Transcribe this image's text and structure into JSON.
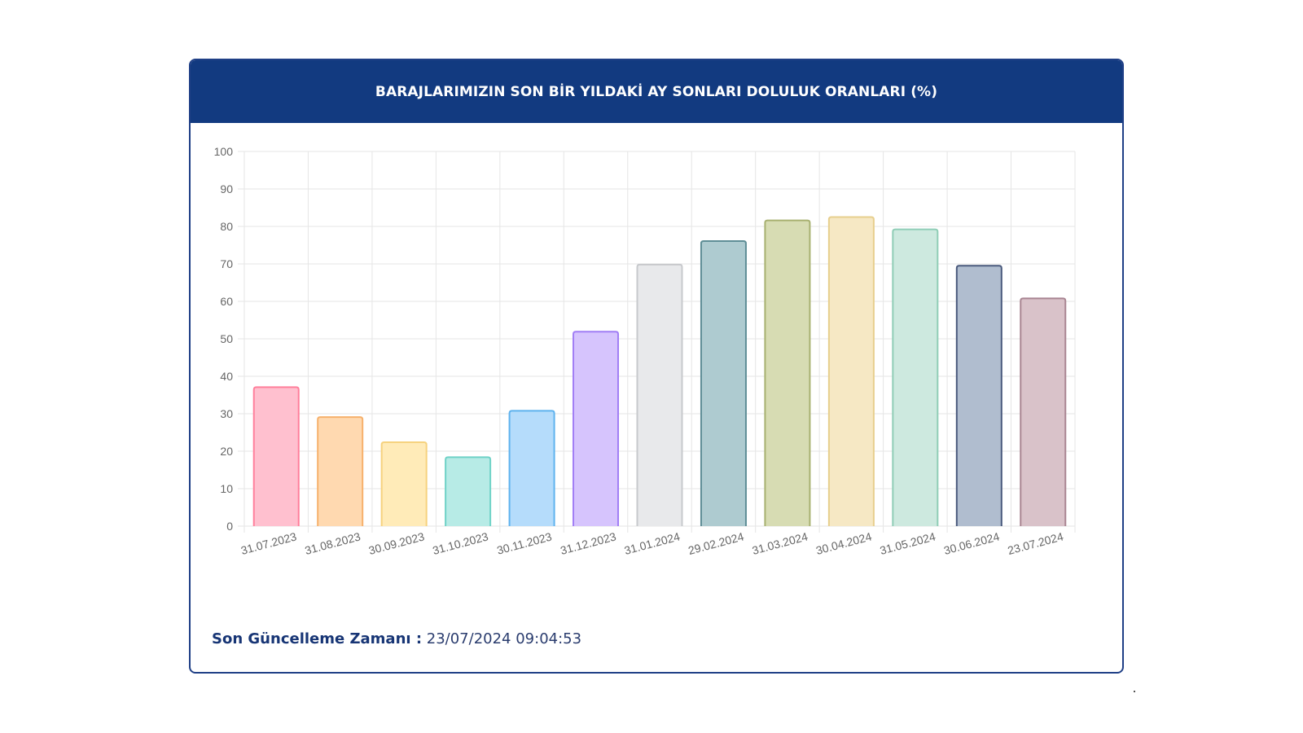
{
  "header": {
    "title": "BARAJLARIMIZIN SON BİR YILDAKİ AY SONLARI DOLULUK ORANLARI (%)"
  },
  "footer": {
    "label": "Son Güncelleme Zamanı :",
    "value": "23/07/2024 09:04:53"
  },
  "chart_data": {
    "type": "bar",
    "categories": [
      "31.07.2023",
      "31.08.2023",
      "30.09.2023",
      "31.10.2023",
      "30.11.2023",
      "31.12.2023",
      "31.01.2024",
      "29.02.2024",
      "31.03.2024",
      "30.04.2024",
      "31.05.2024",
      "30.06.2024",
      "23.07.2024"
    ],
    "values": [
      37.1,
      29.1,
      22.4,
      18.4,
      30.8,
      51.9,
      69.8,
      76.1,
      81.6,
      82.5,
      79.2,
      69.5,
      60.8
    ],
    "ylim": [
      0,
      100
    ],
    "yticks": [
      0,
      10,
      20,
      30,
      40,
      50,
      60,
      70,
      80,
      90,
      100
    ],
    "grid": true,
    "colors": {
      "fill": [
        "#ffc0cf",
        "#ffd9b0",
        "#ffebb8",
        "#b7ebe6",
        "#b5dcfb",
        "#d6c4fd",
        "#e8e9eb",
        "#aecbd0",
        "#d7dcb3",
        "#f6e8c4",
        "#cde9df",
        "#b0bdcf",
        "#d9c2c9"
      ],
      "stroke": [
        "#ff7f9b",
        "#f6b06b",
        "#f6d27e",
        "#6fd2c7",
        "#5eb2ee",
        "#a17ef5",
        "#c7c9cc",
        "#5f8e96",
        "#a8b171",
        "#e7cf8e",
        "#8fcdb6",
        "#4a5a7d",
        "#a98592"
      ],
      "grid": "#e6e6e6",
      "axis_text": "#666666"
    }
  }
}
